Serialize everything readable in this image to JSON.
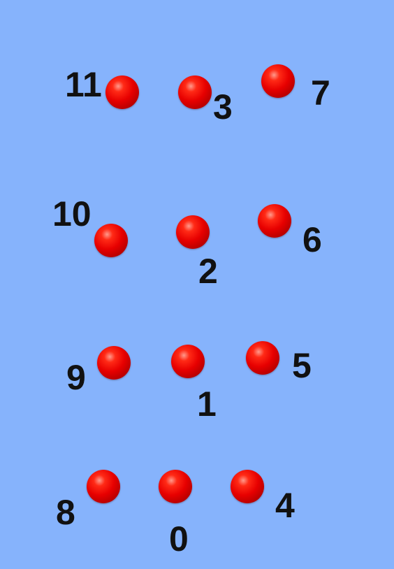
{
  "colors": {
    "background": "#86b3fc",
    "sphere": "#e70000",
    "label": "#111111"
  },
  "nodes": [
    {
      "id": "0",
      "label": "0"
    },
    {
      "id": "1",
      "label": "1"
    },
    {
      "id": "2",
      "label": "2"
    },
    {
      "id": "3",
      "label": "3"
    },
    {
      "id": "4",
      "label": "4"
    },
    {
      "id": "5",
      "label": "5"
    },
    {
      "id": "6",
      "label": "6"
    },
    {
      "id": "7",
      "label": "7"
    },
    {
      "id": "8",
      "label": "8"
    },
    {
      "id": "9",
      "label": "9"
    },
    {
      "id": "10",
      "label": "10"
    },
    {
      "id": "11",
      "label": "11"
    }
  ]
}
